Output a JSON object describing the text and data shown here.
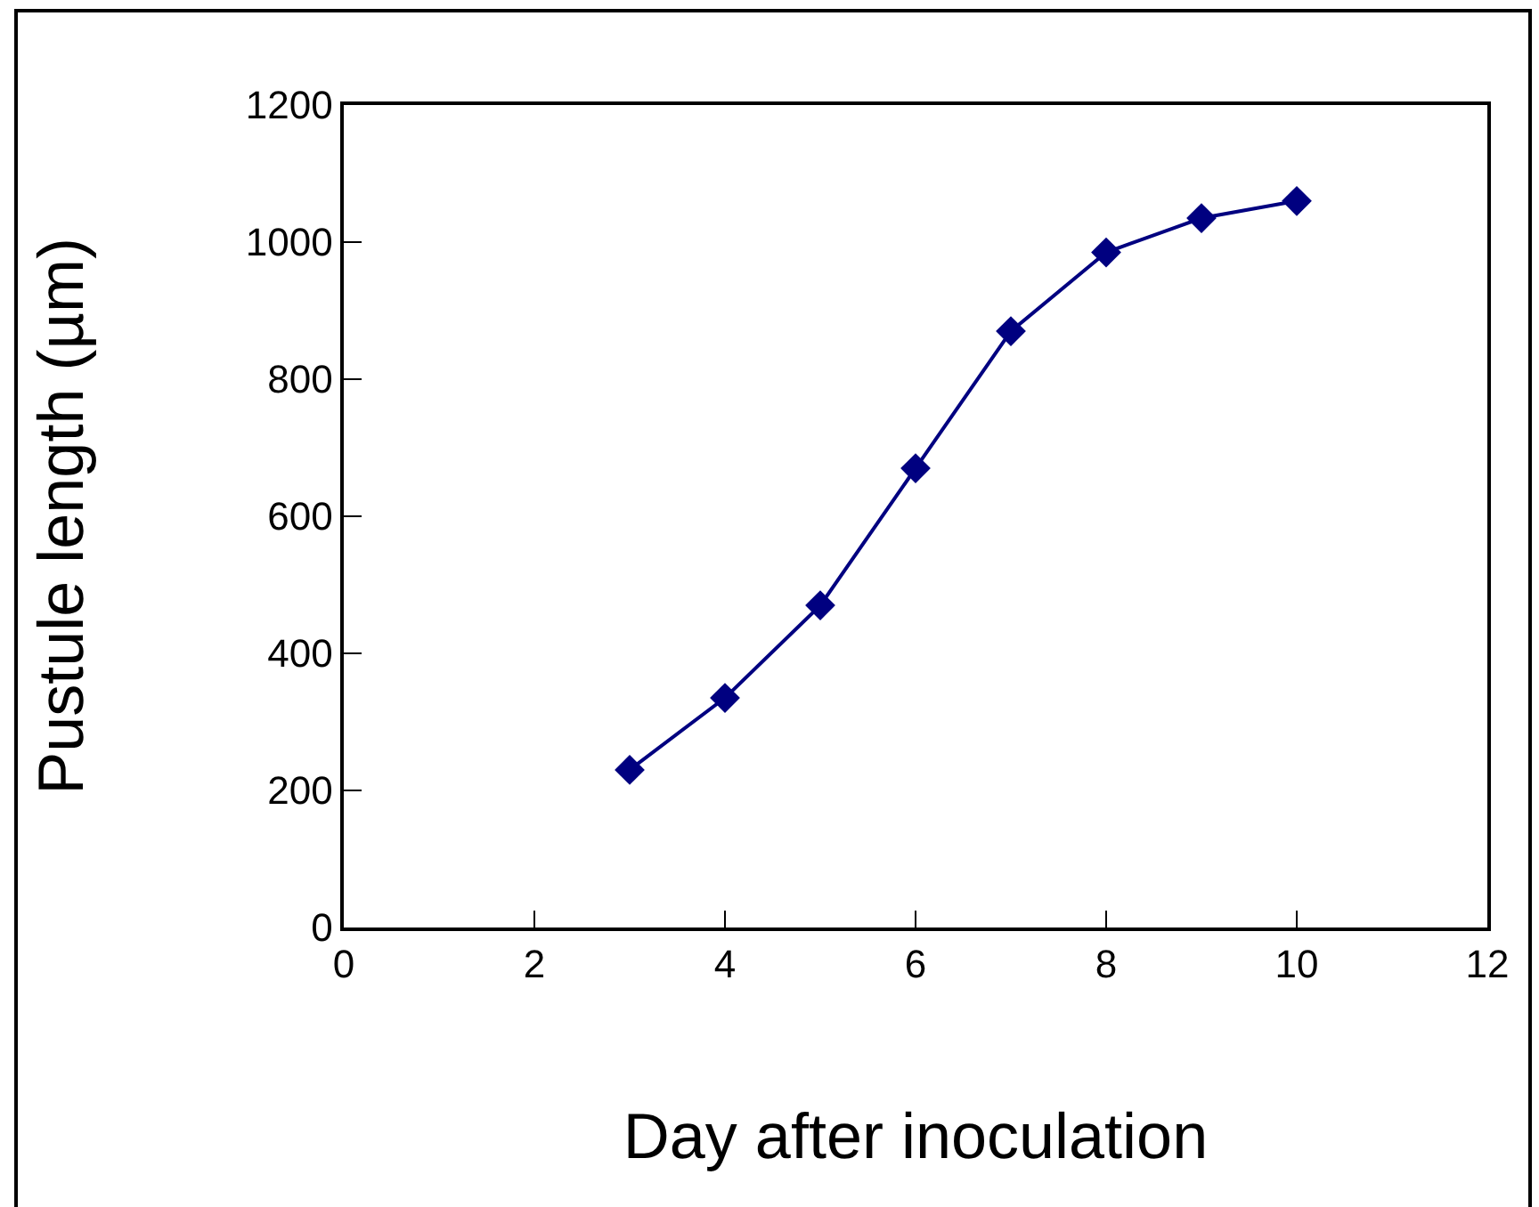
{
  "chart_data": {
    "type": "line",
    "xlabel": "Day after inoculation",
    "ylabel": "Pustule length (µm)",
    "x": [
      3,
      4,
      5,
      6,
      7,
      8,
      9,
      10
    ],
    "series": [
      {
        "color": "#000080",
        "values": [
          230,
          335,
          470,
          670,
          870,
          985,
          1035,
          1060
        ]
      }
    ],
    "xlim": [
      0,
      12
    ],
    "xticks": [
      0,
      2,
      4,
      6,
      8,
      10,
      12
    ],
    "ylim": [
      0,
      1200
    ],
    "yticks": [
      0,
      200,
      400,
      600,
      800,
      1000,
      1200
    ],
    "grid": false,
    "marker": "diamond",
    "line_style": "solid"
  }
}
